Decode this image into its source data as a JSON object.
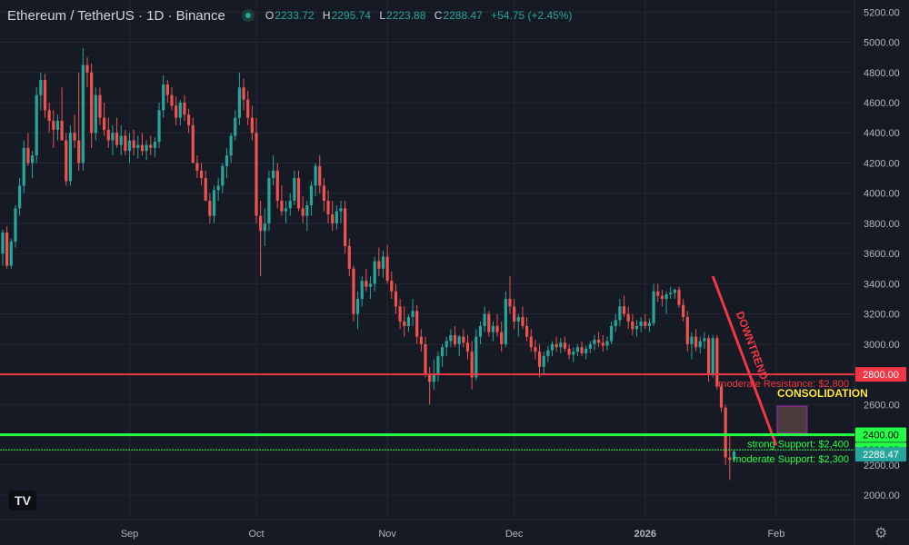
{
  "header": {
    "symbol": "Ethereum / TetherUS · 1D · Binance",
    "open_label": "O",
    "open": "2233.72",
    "high_label": "H",
    "high": "2295.74",
    "low_label": "L",
    "low": "2223.88",
    "close_label": "C",
    "close": "2288.47",
    "change": "+54.75 (+2.45%)"
  },
  "logo_text": "TV",
  "icons": {
    "settings": "gear-icon",
    "status": "market-status-dot"
  },
  "colors": {
    "bg": "#161a25",
    "up": "#26a69a",
    "down": "#ef5350",
    "grid": "#242733",
    "resistance": "#f23645",
    "support": "#22ff44",
    "last_price": "#26a69a"
  },
  "chart_data": {
    "type": "candlestick",
    "ylim": [
      1850,
      5280
    ],
    "y_ticks": [
      "5200.00",
      "5000.00",
      "4800.00",
      "4600.00",
      "4400.00",
      "4200.00",
      "4000.00",
      "3800.00",
      "3600.00",
      "3400.00",
      "3200.00",
      "3000.00",
      "2800.00",
      "2600.00",
      "2400.00",
      "2200.00",
      "2000.00"
    ],
    "x_labels": [
      "Sep",
      "Oct",
      "Nov",
      "Dec",
      "2026",
      "Feb"
    ],
    "x_positions": [
      30,
      60,
      91,
      121,
      152,
      183
    ],
    "num_days": 190,
    "series": [
      {
        "fields": [
          "o",
          "h",
          "l",
          "c"
        ],
        "values": [
          [
            3600,
            3760,
            3520,
            3740
          ],
          [
            3740,
            3780,
            3500,
            3520
          ],
          [
            3520,
            3700,
            3500,
            3680
          ],
          [
            3680,
            3920,
            3640,
            3900
          ],
          [
            3900,
            4100,
            3850,
            4050
          ],
          [
            4050,
            4350,
            4000,
            4300
          ],
          [
            4300,
            4400,
            4180,
            4200
          ],
          [
            4200,
            4280,
            4100,
            4250
          ],
          [
            4250,
            4700,
            4200,
            4650
          ],
          [
            4650,
            4800,
            4550,
            4750
          ],
          [
            4750,
            4790,
            4500,
            4550
          ],
          [
            4550,
            4600,
            4400,
            4480
          ],
          [
            4480,
            4550,
            4300,
            4420
          ],
          [
            4420,
            4520,
            4350,
            4480
          ],
          [
            4480,
            4700,
            4400,
            4350
          ],
          [
            4350,
            4400,
            4050,
            4080
          ],
          [
            4080,
            4450,
            4050,
            4400
          ],
          [
            4400,
            4520,
            4300,
            4350
          ],
          [
            4350,
            4800,
            4150,
            4200
          ],
          [
            4200,
            4960,
            4150,
            4850
          ],
          [
            4850,
            4900,
            4700,
            4800
          ],
          [
            4800,
            4860,
            4300,
            4400
          ],
          [
            4400,
            4700,
            4350,
            4650
          ],
          [
            4650,
            4700,
            4450,
            4500
          ],
          [
            4500,
            4600,
            4380,
            4420
          ],
          [
            4420,
            4500,
            4300,
            4350
          ],
          [
            4350,
            4450,
            4250,
            4400
          ],
          [
            4400,
            4500,
            4300,
            4320
          ],
          [
            4320,
            4450,
            4250,
            4380
          ],
          [
            4380,
            4420,
            4250,
            4280
          ],
          [
            4280,
            4400,
            4200,
            4350
          ],
          [
            4350,
            4420,
            4250,
            4300
          ],
          [
            4300,
            4380,
            4230,
            4320
          ],
          [
            4320,
            4400,
            4250,
            4280
          ],
          [
            4280,
            4350,
            4220,
            4320
          ],
          [
            4320,
            4380,
            4250,
            4300
          ],
          [
            4300,
            4370,
            4240,
            4340
          ],
          [
            4340,
            4600,
            4300,
            4550
          ],
          [
            4550,
            4780,
            4500,
            4720
          ],
          [
            4720,
            4750,
            4600,
            4650
          ],
          [
            4650,
            4700,
            4550,
            4580
          ],
          [
            4580,
            4640,
            4450,
            4500
          ],
          [
            4500,
            4620,
            4450,
            4600
          ],
          [
            4600,
            4650,
            4480,
            4520
          ],
          [
            4520,
            4560,
            4400,
            4450
          ],
          [
            4450,
            4500,
            4300,
            4200
          ],
          [
            4200,
            4250,
            4100,
            4150
          ],
          [
            4150,
            4200,
            4050,
            4100
          ],
          [
            4100,
            4150,
            3950,
            3950
          ],
          [
            3950,
            4000,
            3800,
            3850
          ],
          [
            3850,
            4050,
            3800,
            4020
          ],
          [
            4020,
            4100,
            3950,
            4050
          ],
          [
            4050,
            4200,
            4000,
            4180
          ],
          [
            4180,
            4300,
            4100,
            4250
          ],
          [
            4250,
            4400,
            4200,
            4380
          ],
          [
            4380,
            4550,
            4350,
            4500
          ],
          [
            4500,
            4800,
            4450,
            4700
          ],
          [
            4700,
            4760,
            4550,
            4620
          ],
          [
            4620,
            4680,
            4450,
            4500
          ],
          [
            4500,
            4580,
            4350,
            4400
          ],
          [
            4400,
            4500,
            3800,
            3850
          ],
          [
            3850,
            3950,
            3450,
            3750
          ],
          [
            3750,
            3900,
            3650,
            3800
          ],
          [
            3800,
            4150,
            3750,
            4100
          ],
          [
            4100,
            4250,
            4050,
            4150
          ],
          [
            4150,
            4200,
            3900,
            3950
          ],
          [
            3950,
            4050,
            3850,
            3880
          ],
          [
            3880,
            3950,
            3800,
            3900
          ],
          [
            3900,
            4000,
            3850,
            3950
          ],
          [
            3950,
            4150,
            3920,
            4100
          ],
          [
            4100,
            4150,
            3880,
            3900
          ],
          [
            3900,
            3980,
            3800,
            3850
          ],
          [
            3850,
            3950,
            3750,
            3920
          ],
          [
            3920,
            4080,
            3850,
            4050
          ],
          [
            4050,
            4200,
            3980,
            4180
          ],
          [
            4180,
            4250,
            4000,
            4050
          ],
          [
            4050,
            4100,
            3880,
            3950
          ],
          [
            3950,
            4020,
            3800,
            3860
          ],
          [
            3860,
            3950,
            3750,
            3800
          ],
          [
            3800,
            3920,
            3760,
            3880
          ],
          [
            3880,
            3950,
            3800,
            3900
          ],
          [
            3900,
            3950,
            3600,
            3650
          ],
          [
            3650,
            3700,
            3450,
            3500
          ],
          [
            3500,
            3520,
            3150,
            3200
          ],
          [
            3200,
            3350,
            3100,
            3300
          ],
          [
            3300,
            3450,
            3250,
            3420
          ],
          [
            3420,
            3500,
            3350,
            3380
          ],
          [
            3380,
            3450,
            3300,
            3400
          ],
          [
            3400,
            3580,
            3350,
            3550
          ],
          [
            3550,
            3640,
            3450,
            3500
          ],
          [
            3500,
            3620,
            3440,
            3580
          ],
          [
            3580,
            3660,
            3400,
            3420
          ],
          [
            3420,
            3480,
            3300,
            3350
          ],
          [
            3350,
            3400,
            3200,
            3250
          ],
          [
            3250,
            3300,
            3100,
            3150
          ],
          [
            3150,
            3250,
            3050,
            3120
          ],
          [
            3120,
            3200,
            3080,
            3180
          ],
          [
            3180,
            3300,
            3120,
            3220
          ],
          [
            3220,
            3260,
            3000,
            3050
          ],
          [
            3050,
            3100,
            2950,
            3000
          ],
          [
            3000,
            3050,
            2780,
            2800
          ],
          [
            2800,
            2850,
            2600,
            2750
          ],
          [
            2750,
            2900,
            2700,
            2800
          ],
          [
            2800,
            2950,
            2750,
            2920
          ],
          [
            2920,
            3000,
            2850,
            2980
          ],
          [
            2980,
            3050,
            2920,
            3020
          ],
          [
            3020,
            3100,
            2980,
            3060
          ],
          [
            3060,
            3120,
            2980,
            3000
          ],
          [
            3000,
            3060,
            2920,
            3050
          ],
          [
            3050,
            3100,
            2980,
            3010
          ],
          [
            3010,
            3060,
            2900,
            2950
          ],
          [
            2950,
            3020,
            2700,
            2780
          ],
          [
            2780,
            3100,
            2760,
            3050
          ],
          [
            3050,
            3150,
            3000,
            3120
          ],
          [
            3120,
            3250,
            3080,
            3200
          ],
          [
            3200,
            3220,
            3050,
            3080
          ],
          [
            3080,
            3150,
            3020,
            3120
          ],
          [
            3120,
            3200,
            3050,
            3080
          ],
          [
            3080,
            3150,
            2950,
            3000
          ],
          [
            3000,
            3350,
            2980,
            3300
          ],
          [
            3300,
            3450,
            3200,
            3250
          ],
          [
            3250,
            3300,
            3100,
            3150
          ],
          [
            3150,
            3200,
            3050,
            3180
          ],
          [
            3180,
            3250,
            3100,
            3120
          ],
          [
            3120,
            3180,
            3020,
            3050
          ],
          [
            3050,
            3100,
            2950,
            2980
          ],
          [
            2980,
            3030,
            2900,
            2950
          ],
          [
            2950,
            3000,
            2780,
            2850
          ],
          [
            2850,
            2950,
            2800,
            2920
          ],
          [
            2920,
            2990,
            2880,
            2960
          ],
          [
            2960,
            3020,
            2920,
            3000
          ],
          [
            3000,
            3050,
            2950,
            2980
          ],
          [
            2980,
            3040,
            2940,
            3010
          ],
          [
            3010,
            3050,
            2950,
            2970
          ],
          [
            2970,
            3000,
            2900,
            2930
          ],
          [
            2930,
            2980,
            2880,
            2950
          ],
          [
            2950,
            3000,
            2920,
            2980
          ],
          [
            2980,
            3020,
            2920,
            2940
          ],
          [
            2940,
            2990,
            2900,
            2970
          ],
          [
            2970,
            3020,
            2940,
            3000
          ],
          [
            3000,
            3060,
            2960,
            3030
          ],
          [
            3030,
            3080,
            2980,
            3010
          ],
          [
            3010,
            3060,
            2950,
            2990
          ],
          [
            2990,
            3050,
            2960,
            3020
          ],
          [
            3020,
            3150,
            3000,
            3120
          ],
          [
            3120,
            3200,
            3080,
            3160
          ],
          [
            3160,
            3300,
            3120,
            3250
          ],
          [
            3250,
            3320,
            3180,
            3200
          ],
          [
            3200,
            3250,
            3100,
            3150
          ],
          [
            3150,
            3200,
            3060,
            3100
          ],
          [
            3100,
            3160,
            3050,
            3120
          ],
          [
            3120,
            3180,
            3080,
            3150
          ],
          [
            3150,
            3200,
            3100,
            3120
          ],
          [
            3120,
            3170,
            3080,
            3140
          ],
          [
            3140,
            3400,
            3120,
            3350
          ],
          [
            3350,
            3400,
            3280,
            3320
          ],
          [
            3320,
            3360,
            3250,
            3300
          ],
          [
            3300,
            3350,
            3200,
            3330
          ],
          [
            3330,
            3380,
            3300,
            3340
          ],
          [
            3340,
            3370,
            3300,
            3360
          ],
          [
            3360,
            3380,
            3240,
            3260
          ],
          [
            3260,
            3300,
            3150,
            3180
          ],
          [
            3180,
            3220,
            2950,
            3000
          ],
          [
            3000,
            3080,
            2900,
            3050
          ],
          [
            3050,
            3100,
            2950,
            2980
          ],
          [
            2980,
            3050,
            2940,
            3020
          ],
          [
            3020,
            3080,
            2970,
            3040
          ],
          [
            3040,
            3060,
            2750,
            2800
          ],
          [
            2800,
            3060,
            2780,
            3040
          ],
          [
            3040,
            3060,
            2700,
            2720
          ],
          [
            2720,
            2740,
            2550,
            2580
          ],
          [
            2580,
            2600,
            2200,
            2250
          ],
          [
            2250,
            2400,
            2100,
            2233.72
          ],
          [
            2233.72,
            2295.74,
            2223.88,
            2288.47
          ]
        ]
      }
    ],
    "trend_line": {
      "label": "DOWNTREND",
      "from": [
        168,
        3450
      ],
      "to": [
        183,
        2330
      ]
    },
    "consolidation": {
      "label": "CONSOLIDATION",
      "price_top": 2590,
      "price_box": [
        2590,
        2410
      ]
    },
    "levels": [
      {
        "price": 2800,
        "label": "moderate Resistance: $2,800",
        "tag": "2800.00"
      },
      {
        "price": 2400,
        "label": "strong Support: $2,400",
        "tag": "2400.00"
      },
      {
        "price": 2300,
        "label": "moderate Support: $2,300",
        "tag": "2300.00"
      }
    ],
    "last_price": {
      "price": 2288.47,
      "tag": "2288.47"
    }
  }
}
